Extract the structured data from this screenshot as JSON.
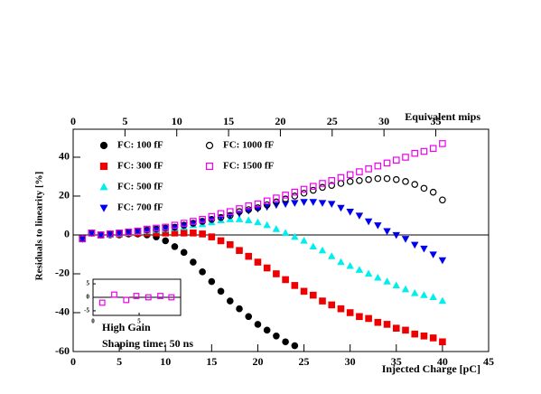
{
  "chart_data": [
    {
      "type": "scatter",
      "xlabel": "Injected Charge [pC]",
      "ylabel": "Residuals to linearity [%]",
      "x2label": "Equivalent mips",
      "annotations": [
        "High Gain",
        "Shaping time: 50 ns"
      ],
      "x": [
        1,
        2,
        3,
        4,
        5,
        6,
        7,
        8,
        9,
        10,
        11,
        12,
        13,
        14,
        15,
        16,
        17,
        18,
        19,
        20,
        21,
        22,
        23,
        24,
        25,
        26,
        27,
        28,
        29,
        30,
        31,
        32,
        33,
        34,
        35,
        36,
        37,
        38,
        39,
        40
      ],
      "xlim": [
        0,
        45
      ],
      "xticks": [
        0,
        5,
        10,
        15,
        20,
        25,
        30,
        35,
        40,
        45
      ],
      "x2lim": [
        0,
        40.1
      ],
      "x2ticks": [
        0,
        5,
        10,
        15,
        20,
        25,
        30,
        35
      ],
      "ylim": [
        -60,
        54.4
      ],
      "yticks": [
        -60,
        -40,
        -20,
        0,
        20,
        40
      ],
      "legend": "upper left",
      "series": [
        {
          "name": "FC: 100 fF",
          "color": "#000000",
          "marker": "circle-filled",
          "values": [
            -2,
            1,
            0,
            0,
            0,
            0.5,
            0.5,
            0,
            -1,
            -3,
            -6,
            -9,
            -14,
            -19,
            -24,
            -29,
            -34,
            -38,
            -42,
            -46,
            -49,
            -52,
            -55,
            -57,
            null,
            null,
            null,
            null,
            null,
            null,
            null,
            null,
            null,
            null,
            null,
            null,
            null,
            null,
            null,
            null
          ]
        },
        {
          "name": "FC: 300 fF",
          "color": "#ee0000",
          "marker": "square-filled",
          "values": [
            -2,
            1,
            0,
            0.5,
            0.5,
            1,
            1,
            1,
            1,
            1,
            1,
            1,
            1,
            0.5,
            -1,
            -3,
            -5,
            -8,
            -11,
            -14,
            -17,
            -20,
            -23,
            -26,
            -29,
            -31,
            -34,
            -36,
            -38,
            -40,
            -42,
            -43,
            -45,
            -46,
            -48,
            -49,
            -51,
            -52,
            -53,
            -55
          ]
        },
        {
          "name": "FC: 500 fF",
          "color": "#00eeee",
          "marker": "triangle-up",
          "values": [
            -2,
            1,
            0,
            0,
            0.5,
            1,
            1.5,
            2,
            2.5,
            3,
            3.5,
            4,
            5,
            5.5,
            6.5,
            7.5,
            8,
            8,
            7.5,
            6.5,
            5,
            3,
            1,
            -1,
            -3,
            -6,
            -8,
            -11,
            -14,
            -16,
            -18,
            -20,
            -22,
            -24,
            -26,
            -28,
            -30,
            -31,
            -32,
            -34
          ]
        },
        {
          "name": "FC: 700 fF",
          "color": "#0000ee",
          "marker": "triangle-down",
          "values": [
            -2,
            1,
            0,
            0.5,
            1,
            1.5,
            2,
            2.5,
            3,
            3.5,
            4,
            5,
            6,
            7,
            8,
            9,
            10,
            11,
            12.5,
            13.5,
            14.5,
            15.5,
            16,
            16.5,
            17,
            17,
            16.5,
            16,
            14,
            12,
            10,
            7,
            5,
            2,
            0,
            -2,
            -5,
            -7,
            -10,
            -13
          ]
        },
        {
          "name": "FC: 1000 fF",
          "color": "#000000",
          "marker": "circle-open",
          "values": [
            -2,
            1,
            0,
            0.5,
            1,
            1.5,
            2,
            2.5,
            3,
            3.5,
            4,
            5,
            6,
            7,
            8,
            9,
            10,
            12,
            13,
            14,
            15.5,
            17,
            18.5,
            20,
            21.5,
            23,
            24.5,
            25.5,
            26.5,
            27.5,
            28,
            28.5,
            29,
            29,
            28.5,
            27.5,
            26,
            24,
            22,
            18
          ]
        },
        {
          "name": "FC: 1500 fF",
          "color": "#ee00ee",
          "marker": "square-open",
          "values": [
            -2,
            1,
            0,
            0.5,
            1,
            1.5,
            2,
            3,
            3.5,
            4,
            5,
            6,
            7,
            8,
            9.5,
            11,
            12,
            13.5,
            15,
            16,
            17.5,
            19,
            20.5,
            22,
            23.5,
            25,
            26.5,
            28,
            29.5,
            31,
            32.5,
            34,
            35.5,
            37,
            38.5,
            40,
            42,
            43,
            44.5,
            47
          ]
        }
      ]
    },
    {
      "type": "scatter",
      "x": [
        1,
        2.3,
        3.6,
        4.7,
        6,
        7.3,
        8.5
      ],
      "xlim": [
        0,
        9.5
      ],
      "xticks": [
        0,
        5
      ],
      "ylim": [
        -6.7,
        6.7
      ],
      "yticks": [
        -5,
        0,
        5
      ],
      "series": [
        {
          "color": "#ee00ee",
          "marker": "square-open",
          "values": [
            -2,
            1,
            -1,
            0.5,
            0,
            0.5,
            0
          ]
        }
      ]
    }
  ]
}
